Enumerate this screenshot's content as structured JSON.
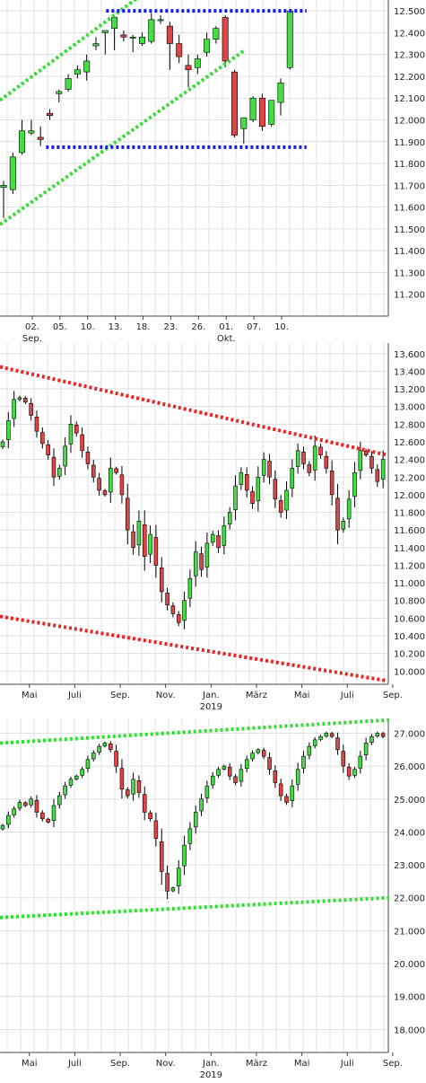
{
  "colors": {
    "background": "#ffffff",
    "grid": "#d9d9d9",
    "axis": "#444444",
    "up": "#44dd44",
    "down": "#e04444",
    "wick": "#000000",
    "green_line": "#33dd33",
    "red_line": "#ee2222",
    "blue_line": "#1a1ae6"
  },
  "chart_data": [
    {
      "type": "candlestick",
      "title": "",
      "grid": true,
      "y_axis_side": "right",
      "yticks": [
        "11.200",
        "11.300",
        "11.400",
        "11.500",
        "11.600",
        "11.700",
        "11.800",
        "11.900",
        "12.000",
        "12.100",
        "12.200",
        "12.300",
        "12.400",
        "12.500"
      ],
      "ylim": [
        11.1,
        12.55
      ],
      "xticks": [
        {
          "label": "02.",
          "sub": "Sep.",
          "i": 3.1
        },
        {
          "label": "05.",
          "i": 6.1
        },
        {
          "label": "10.",
          "i": 9.1
        },
        {
          "label": "13.",
          "i": 12.1
        },
        {
          "label": "18.",
          "i": 15.1
        },
        {
          "label": "23.",
          "i": 18.1
        },
        {
          "label": "26.",
          "i": 21.1
        },
        {
          "label": "01.",
          "sub": "Okt.",
          "i": 24.1
        },
        {
          "label": "07.",
          "i": 27.1
        },
        {
          "label": "10.",
          "i": 30.1
        }
      ],
      "candles": [
        {
          "o": 11.69,
          "h": 11.72,
          "l": 11.55,
          "c": 11.7
        },
        {
          "o": 11.68,
          "h": 11.85,
          "l": 11.66,
          "c": 11.83
        },
        {
          "o": 11.85,
          "h": 12.0,
          "l": 11.84,
          "c": 11.95
        },
        {
          "o": 11.94,
          "h": 12.0,
          "l": 11.93,
          "c": 11.95
        },
        {
          "o": 11.92,
          "h": 11.97,
          "l": 11.88,
          "c": 11.91
        },
        {
          "o": 12.03,
          "h": 12.05,
          "l": 12.0,
          "c": 12.02
        },
        {
          "o": 12.12,
          "h": 12.14,
          "l": 12.08,
          "c": 12.13
        },
        {
          "o": 12.14,
          "h": 12.21,
          "l": 12.13,
          "c": 12.19
        },
        {
          "o": 12.21,
          "h": 12.25,
          "l": 12.19,
          "c": 12.23
        },
        {
          "o": 12.22,
          "h": 12.3,
          "l": 12.18,
          "c": 12.27
        },
        {
          "o": 12.34,
          "h": 12.38,
          "l": 12.32,
          "c": 12.35
        },
        {
          "o": 12.4,
          "h": 12.41,
          "l": 12.3,
          "c": 12.41
        },
        {
          "o": 12.42,
          "h": 12.48,
          "l": 12.32,
          "c": 12.47
        },
        {
          "o": 12.39,
          "h": 12.41,
          "l": 12.36,
          "c": 12.38
        },
        {
          "o": 12.38,
          "h": 12.39,
          "l": 12.31,
          "c": 12.38
        },
        {
          "o": 12.35,
          "h": 12.4,
          "l": 12.34,
          "c": 12.38
        },
        {
          "o": 12.36,
          "h": 12.49,
          "l": 12.35,
          "c": 12.46
        },
        {
          "o": 12.46,
          "h": 12.48,
          "l": 12.44,
          "c": 12.46
        },
        {
          "o": 12.43,
          "h": 12.45,
          "l": 12.23,
          "c": 12.35
        },
        {
          "o": 12.35,
          "h": 12.39,
          "l": 12.26,
          "c": 12.29
        },
        {
          "o": 12.25,
          "h": 12.3,
          "l": 12.15,
          "c": 12.23
        },
        {
          "o": 12.24,
          "h": 12.3,
          "l": 12.21,
          "c": 12.28
        },
        {
          "o": 12.31,
          "h": 12.4,
          "l": 12.29,
          "c": 12.37
        },
        {
          "o": 12.37,
          "h": 12.43,
          "l": 12.35,
          "c": 12.42
        },
        {
          "o": 12.47,
          "h": 12.48,
          "l": 12.24,
          "c": 12.27
        },
        {
          "o": 12.22,
          "h": 12.23,
          "l": 11.92,
          "c": 11.93
        },
        {
          "o": 11.96,
          "h": 12.01,
          "l": 11.89,
          "c": 12.01
        },
        {
          "o": 12.0,
          "h": 12.11,
          "l": 11.99,
          "c": 12.1
        },
        {
          "o": 12.1,
          "h": 12.12,
          "l": 11.95,
          "c": 11.97
        },
        {
          "o": 11.98,
          "h": 12.09,
          "l": 11.97,
          "c": 12.09
        },
        {
          "o": 12.08,
          "h": 12.19,
          "l": 12.02,
          "c": 12.17
        },
        {
          "o": 12.24,
          "h": 12.51,
          "l": 12.23,
          "c": 12.5
        }
      ],
      "lines": [
        {
          "style": "green",
          "from": [
            -1.5,
            12.09
          ],
          "to": [
            14.5,
            12.56
          ]
        },
        {
          "style": "green",
          "from": [
            -1.5,
            11.52
          ],
          "to": [
            26.1,
            12.32
          ]
        },
        {
          "style": "blue",
          "from": [
            11.1,
            12.5
          ],
          "to": [
            32.8,
            12.5
          ]
        },
        {
          "style": "blue",
          "from": [
            4.6,
            11.875
          ],
          "to": [
            32.8,
            11.875
          ]
        }
      ]
    },
    {
      "type": "candlestick",
      "title": "",
      "grid": true,
      "y_axis_side": "right",
      "yticks": [
        "10.000",
        "10.200",
        "10.400",
        "10.600",
        "10.800",
        "11.000",
        "11.200",
        "11.400",
        "11.600",
        "11.800",
        "12.000",
        "12.200",
        "12.400",
        "12.600",
        "12.800",
        "13.000",
        "13.200",
        "13.400",
        "13.600"
      ],
      "ylim": [
        9.85,
        13.72
      ],
      "xticks": [
        {
          "label": "Mai",
          "i": 4.7
        },
        {
          "label": "Juli",
          "i": 12.7
        },
        {
          "label": "Sep.",
          "i": 20.7
        },
        {
          "label": "Nov.",
          "i": 28.7
        },
        {
          "label": "Jan.",
          "sub": "2019",
          "i": 36.7
        },
        {
          "label": "März",
          "i": 44.7
        },
        {
          "label": "Mai",
          "i": 52.7
        },
        {
          "label": "Juli",
          "i": 60.7
        },
        {
          "label": "Sep.",
          "i": 68.7
        }
      ],
      "closes": [
        12.6,
        12.84,
        13.08,
        13.1,
        13.05,
        12.9,
        12.72,
        12.58,
        12.45,
        12.2,
        12.3,
        12.55,
        12.8,
        12.7,
        12.5,
        12.35,
        12.2,
        12.05,
        12.0,
        12.3,
        12.25,
        12.0,
        11.6,
        11.4,
        11.7,
        11.3,
        11.55,
        11.2,
        10.9,
        10.75,
        10.65,
        10.55,
        10.8,
        11.05,
        11.35,
        11.15,
        11.45,
        11.55,
        11.4,
        11.65,
        11.8,
        12.1,
        12.25,
        12.05,
        11.9,
        12.2,
        12.4,
        12.2,
        11.95,
        11.8,
        12.05,
        12.3,
        12.5,
        12.35,
        12.25,
        12.55,
        12.45,
        12.3,
        12.0,
        11.6,
        11.7,
        11.95,
        12.25,
        12.5,
        12.45,
        12.3,
        12.15,
        12.4
      ],
      "lines": [
        {
          "style": "red",
          "from": [
            -1,
            13.45
          ],
          "to": [
            67.7,
            12.45
          ]
        },
        {
          "style": "red",
          "from": [
            -1,
            10.62
          ],
          "to": [
            67.7,
            9.89
          ]
        }
      ]
    },
    {
      "type": "candlestick",
      "title": "",
      "grid": true,
      "y_axis_side": "right",
      "yticks": [
        "18.000",
        "19.000",
        "20.000",
        "21.000",
        "22.000",
        "23.000",
        "24.000",
        "25.000",
        "26.000",
        "27.000"
      ],
      "ylim": [
        17.3,
        27.45
      ],
      "xticks": [
        {
          "label": "Mai",
          "i": 4.7
        },
        {
          "label": "Juli",
          "i": 12.7
        },
        {
          "label": "Sep.",
          "i": 20.7
        },
        {
          "label": "Nov.",
          "i": 28.7
        },
        {
          "label": "Jan.",
          "sub": "2019",
          "i": 36.7
        },
        {
          "label": "März",
          "i": 44.7
        },
        {
          "label": "Mai",
          "i": 52.7
        },
        {
          "label": "Juli",
          "i": 60.7
        },
        {
          "label": "Sep.",
          "i": 68.7
        }
      ],
      "closes": [
        24.2,
        24.5,
        24.7,
        24.9,
        24.8,
        25.0,
        24.6,
        24.4,
        24.3,
        24.8,
        25.1,
        25.4,
        25.6,
        25.7,
        25.9,
        26.2,
        26.4,
        26.6,
        26.7,
        26.5,
        26.0,
        25.3,
        25.1,
        25.6,
        25.2,
        24.6,
        24.4,
        23.8,
        22.8,
        22.2,
        22.3,
        22.9,
        23.6,
        24.1,
        24.6,
        25.0,
        25.4,
        25.7,
        25.9,
        26.0,
        25.7,
        25.5,
        25.9,
        26.2,
        26.4,
        26.5,
        26.3,
        25.9,
        25.5,
        25.1,
        24.9,
        25.4,
        25.9,
        26.3,
        26.6,
        26.8,
        26.9,
        27.0,
        26.9,
        26.5,
        26.0,
        25.7,
        25.9,
        26.3,
        26.7,
        26.9,
        27.0,
        26.9
      ]
    }
  ]
}
